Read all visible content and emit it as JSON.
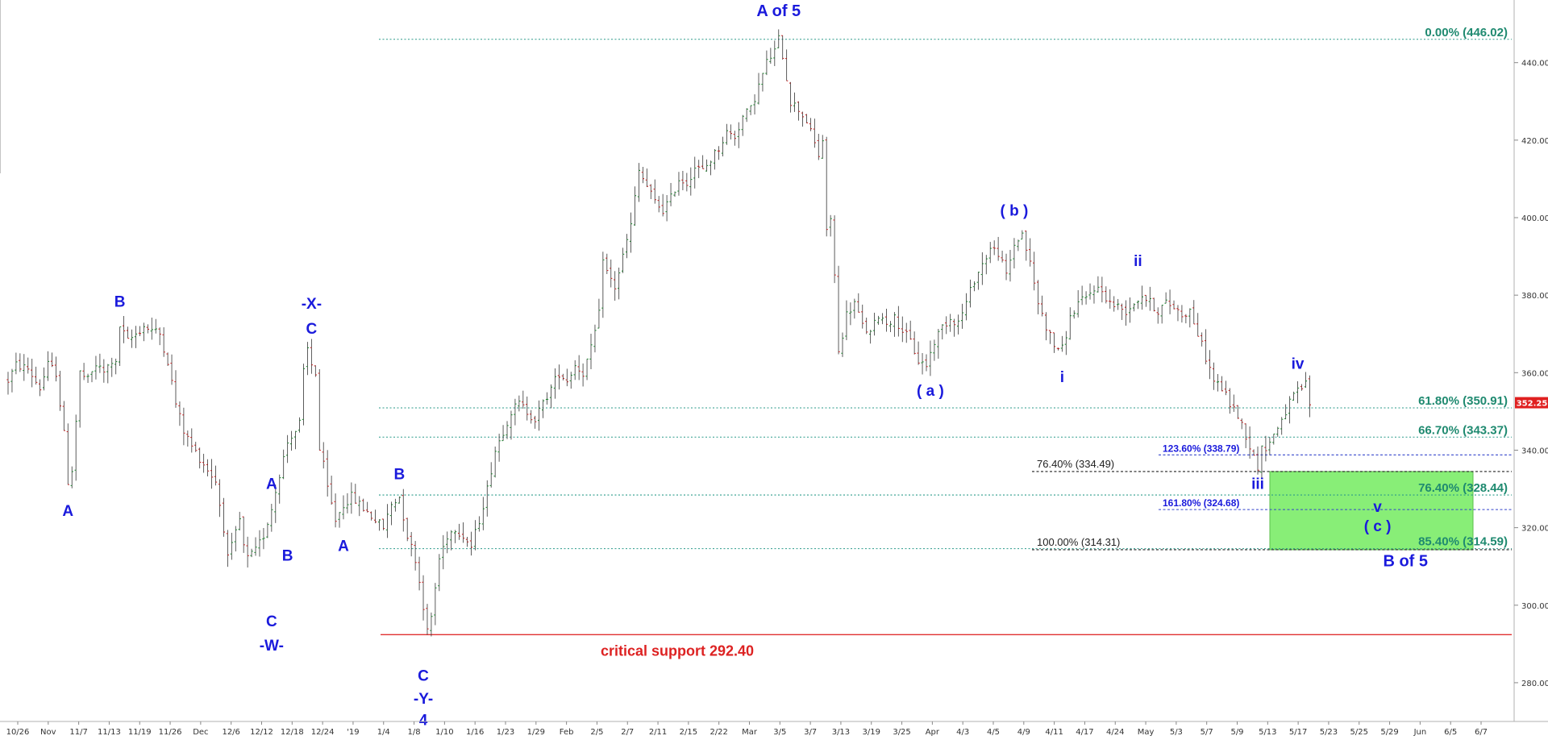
{
  "chart_data": {
    "type": "candlestick",
    "title": "",
    "ylim": [
      270,
      452
    ],
    "y_ticks": [
      "280.00",
      "300.00",
      "320.00",
      "340.00",
      "360.00",
      "380.00",
      "400.00",
      "420.00",
      "440.00"
    ],
    "y_tick_values": [
      280,
      300,
      320,
      340,
      360,
      380,
      400,
      420,
      440
    ],
    "x_ticks": [
      "10/26",
      "Nov",
      "11/7",
      "11/13",
      "11/19",
      "11/26",
      "Dec",
      "12/6",
      "12/12",
      "12/18",
      "12/24",
      "'19",
      "1/4",
      "1/8",
      "1/10",
      "1/16",
      "1/23",
      "1/29",
      "Feb",
      "2/5",
      "2/7",
      "2/11",
      "2/15",
      "2/22",
      "Mar",
      "3/5",
      "3/7",
      "3/13",
      "3/19",
      "3/25",
      "Apr",
      "4/3",
      "4/5",
      "4/9",
      "4/11",
      "4/17",
      "4/24",
      "May",
      "5/3",
      "5/7",
      "5/9",
      "5/13",
      "5/17",
      "5/23",
      "5/25",
      "5/29",
      "Jun",
      "6/5",
      "6/7"
    ],
    "last_price": "352.25",
    "price_path": [
      [
        0,
        358
      ],
      [
        2,
        362
      ],
      [
        5,
        361
      ],
      [
        8,
        356
      ],
      [
        10,
        362
      ],
      [
        12,
        360
      ],
      [
        14,
        344
      ],
      [
        15,
        332
      ],
      [
        16,
        335
      ],
      [
        18,
        360
      ],
      [
        20,
        358
      ],
      [
        22,
        362
      ],
      [
        24,
        360
      ],
      [
        26,
        363
      ],
      [
        27,
        362
      ],
      [
        28,
        372
      ],
      [
        30,
        368
      ],
      [
        32,
        370
      ],
      [
        34,
        372
      ],
      [
        36,
        371
      ],
      [
        38,
        370
      ],
      [
        40,
        363
      ],
      [
        42,
        352
      ],
      [
        44,
        345
      ],
      [
        46,
        341
      ],
      [
        48,
        338
      ],
      [
        50,
        335
      ],
      [
        52,
        332
      ],
      [
        54,
        320
      ],
      [
        55,
        312
      ],
      [
        56,
        315
      ],
      [
        58,
        322
      ],
      [
        59,
        315
      ],
      [
        60,
        312
      ],
      [
        62,
        314
      ],
      [
        64,
        318
      ],
      [
        66,
        325
      ],
      [
        68,
        334
      ],
      [
        70,
        342
      ],
      [
        71,
        344
      ],
      [
        72,
        345
      ],
      [
        73,
        347
      ],
      [
        74,
        360
      ],
      [
        75,
        366
      ],
      [
        76,
        362
      ],
      [
        77,
        360
      ],
      [
        78,
        340
      ],
      [
        79,
        336
      ],
      [
        80,
        330
      ],
      [
        82,
        322
      ],
      [
        84,
        326
      ],
      [
        86,
        328
      ],
      [
        88,
        326
      ],
      [
        90,
        324
      ],
      [
        92,
        322
      ],
      [
        94,
        320
      ],
      [
        96,
        326
      ],
      [
        98,
        328
      ],
      [
        100,
        318
      ],
      [
        102,
        312
      ],
      [
        104,
        300
      ],
      [
        105,
        293
      ],
      [
        106,
        297
      ],
      [
        108,
        312
      ],
      [
        110,
        318
      ],
      [
        112,
        320
      ],
      [
        114,
        318
      ],
      [
        116,
        315
      ],
      [
        118,
        322
      ],
      [
        120,
        330
      ],
      [
        122,
        340
      ],
      [
        124,
        345
      ],
      [
        126,
        350
      ],
      [
        128,
        352
      ],
      [
        130,
        350
      ],
      [
        132,
        348
      ],
      [
        134,
        352
      ],
      [
        136,
        356
      ],
      [
        138,
        360
      ],
      [
        140,
        358
      ],
      [
        142,
        362
      ],
      [
        144,
        360
      ],
      [
        146,
        366
      ],
      [
        148,
        375
      ],
      [
        149,
        390
      ],
      [
        150,
        386
      ],
      [
        152,
        382
      ],
      [
        154,
        390
      ],
      [
        156,
        398
      ],
      [
        158,
        412
      ],
      [
        160,
        408
      ],
      [
        162,
        404
      ],
      [
        164,
        402
      ],
      [
        166,
        405
      ],
      [
        168,
        410
      ],
      [
        170,
        409
      ],
      [
        172,
        413
      ],
      [
        174,
        412
      ],
      [
        176,
        415
      ],
      [
        178,
        418
      ],
      [
        180,
        422
      ],
      [
        182,
        421
      ],
      [
        184,
        426
      ],
      [
        186,
        428
      ],
      [
        188,
        434
      ],
      [
        190,
        440
      ],
      [
        192,
        443
      ],
      [
        193,
        446
      ],
      [
        194,
        442
      ],
      [
        196,
        430
      ],
      [
        198,
        428
      ],
      [
        200,
        425
      ],
      [
        202,
        419
      ],
      [
        203,
        416
      ],
      [
        204,
        420
      ],
      [
        205,
        396
      ],
      [
        206,
        400
      ],
      [
        207,
        385
      ],
      [
        208,
        365
      ],
      [
        210,
        375
      ],
      [
        212,
        378
      ],
      [
        214,
        372
      ],
      [
        216,
        370
      ],
      [
        218,
        375
      ],
      [
        220,
        373
      ],
      [
        222,
        374
      ],
      [
        224,
        371
      ],
      [
        226,
        368
      ],
      [
        228,
        363
      ],
      [
        230,
        362
      ],
      [
        232,
        368
      ],
      [
        234,
        372
      ],
      [
        236,
        374
      ],
      [
        238,
        373
      ],
      [
        240,
        378
      ],
      [
        242,
        384
      ],
      [
        244,
        388
      ],
      [
        246,
        392
      ],
      [
        248,
        391
      ],
      [
        250,
        385
      ],
      [
        252,
        393
      ],
      [
        254,
        396
      ],
      [
        256,
        388
      ],
      [
        258,
        378
      ],
      [
        260,
        372
      ],
      [
        262,
        367
      ],
      [
        264,
        366
      ],
      [
        266,
        374
      ],
      [
        268,
        378
      ],
      [
        270,
        379
      ],
      [
        272,
        382
      ],
      [
        274,
        381
      ],
      [
        276,
        378
      ],
      [
        278,
        377
      ],
      [
        280,
        376
      ],
      [
        282,
        378
      ],
      [
        284,
        380
      ],
      [
        286,
        378
      ],
      [
        288,
        376
      ],
      [
        290,
        378
      ],
      [
        292,
        377
      ],
      [
        294,
        375
      ],
      [
        296,
        376
      ],
      [
        298,
        370
      ],
      [
        300,
        364
      ],
      [
        302,
        358
      ],
      [
        304,
        356
      ],
      [
        306,
        352
      ],
      [
        308,
        349
      ],
      [
        310,
        344
      ],
      [
        312,
        338
      ],
      [
        313,
        336
      ],
      [
        314,
        340
      ],
      [
        316,
        342
      ],
      [
        318,
        346
      ],
      [
        320,
        350
      ],
      [
        322,
        354
      ],
      [
        324,
        356
      ],
      [
        325,
        357
      ],
      [
        326,
        352
      ]
    ],
    "overlays": {
      "critical_support": {
        "label": "critical support 292.40",
        "value": 292.4
      },
      "fib_green": [
        {
          "label": "0.00% (446.02)",
          "value": 446.02
        },
        {
          "label": "61.80% (350.91)",
          "value": 350.91
        },
        {
          "label": "66.70% (343.37)",
          "value": 343.37
        },
        {
          "label": "76.40% (328.44)",
          "value": 328.44
        },
        {
          "label": "85.40% (314.59)",
          "value": 314.59
        }
      ],
      "fib_blue": [
        {
          "label": "123.60% (338.79)",
          "value": 338.79
        },
        {
          "label": "161.80% (324.68)",
          "value": 324.68
        }
      ],
      "fib_black": [
        {
          "label": "76.40% (334.49)",
          "value": 334.49
        },
        {
          "label": "100.00% (314.31)",
          "value": 314.31
        }
      ],
      "target_zone": {
        "top": 334.49,
        "bottom": 314.31
      }
    },
    "wave_labels": [
      {
        "text": "A",
        "x_index": 15,
        "y": 324.5
      },
      {
        "text": "B",
        "x_index": 28,
        "y": 378.5
      },
      {
        "text": "A",
        "x_index": 66,
        "y": 331.5
      },
      {
        "text": "B",
        "x_index": 70,
        "y": 313
      },
      {
        "text": "C",
        "x_index": 66,
        "y": 296
      },
      {
        "text": "-W-",
        "x_index": 66,
        "y": 289.8
      },
      {
        "text": "-X-",
        "x_index": 76,
        "y": 378
      },
      {
        "text": "C",
        "x_index": 76,
        "y": 371.5
      },
      {
        "text": "A",
        "x_index": 84,
        "y": 315.5
      },
      {
        "text": "B",
        "x_index": 98,
        "y": 334
      },
      {
        "text": "C",
        "x_index": 104,
        "y": 282
      },
      {
        "text": "-Y-",
        "x_index": 104,
        "y": 276
      },
      {
        "text": "4",
        "x_index": 104,
        "y": 270.5
      },
      {
        "text": "A of 5",
        "x_index": 193,
        "y": 453.5
      },
      {
        "text": "( a )",
        "x_index": 231,
        "y": 355.5
      },
      {
        "text": "( b )",
        "x_index": 252,
        "y": 402
      },
      {
        "text": "i",
        "x_index": 264,
        "y": 359
      },
      {
        "text": "ii",
        "x_index": 283,
        "y": 389
      },
      {
        "text": "iii",
        "x_index": 313,
        "y": 331.5
      },
      {
        "text": "iv",
        "x_index": 323,
        "y": 362.5
      },
      {
        "text": "v",
        "x_index": 343,
        "y": 325.5
      },
      {
        "text": "( c )",
        "x_index": 343,
        "y": 320.5
      },
      {
        "text": "B of 5",
        "x_index": 350,
        "y": 311.5
      }
    ]
  }
}
